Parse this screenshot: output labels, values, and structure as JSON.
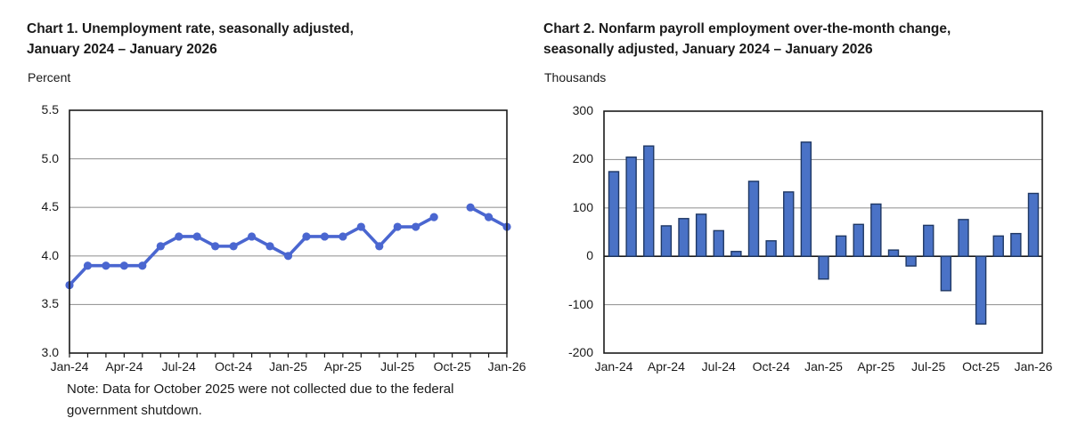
{
  "chart1": {
    "title_line1": "Chart 1. Unemployment rate, seasonally adjusted,",
    "title_line2": "January 2024 – January 2026",
    "unit_label": "Percent",
    "note_line1": "Note: Data for October 2025 were not collected due to the federal",
    "note_line2": "government shutdown."
  },
  "chart2": {
    "title_line1": "Chart 2. Nonfarm payroll employment over-the-month change,",
    "title_line2": "seasonally adjusted, January 2024 – January 2026",
    "unit_label": "Thousands"
  },
  "chart_data": [
    {
      "id": "chart1",
      "type": "line",
      "title": "Chart 1. Unemployment rate, seasonally adjusted, January 2024 – January 2026",
      "ylabel": "Percent",
      "x": [
        "Jan-24",
        "Feb-24",
        "Mar-24",
        "Apr-24",
        "May-24",
        "Jun-24",
        "Jul-24",
        "Aug-24",
        "Sep-24",
        "Oct-24",
        "Nov-24",
        "Dec-24",
        "Jan-25",
        "Feb-25",
        "Mar-25",
        "Apr-25",
        "May-25",
        "Jun-25",
        "Jul-25",
        "Aug-25",
        "Sep-25",
        "Oct-25",
        "Nov-25",
        "Dec-25",
        "Jan-26"
      ],
      "values": [
        3.7,
        3.9,
        3.9,
        3.9,
        3.9,
        4.1,
        4.2,
        4.2,
        4.1,
        4.1,
        4.2,
        4.1,
        4.0,
        4.2,
        4.2,
        4.2,
        4.3,
        4.1,
        4.3,
        4.3,
        4.4,
        null,
        4.5,
        4.4,
        4.3
      ],
      "missing_note": "October 2025 not collected (federal government shutdown)",
      "ylim": [
        3.0,
        5.5
      ],
      "ytick_values": [
        5.5,
        5.0,
        4.5,
        4.0,
        3.5,
        3.0
      ],
      "ytick_labels": [
        "5.5",
        "5.0",
        "4.5",
        "4.0",
        "3.5",
        "3.0"
      ],
      "xtick_indices": [
        0,
        3,
        6,
        9,
        12,
        15,
        18,
        21,
        24
      ],
      "xtick_labels": [
        "Jan-24",
        "Apr-24",
        "Jul-24",
        "Oct-24",
        "Jan-25",
        "Apr-25",
        "Jul-25",
        "Oct-25",
        "Jan-26"
      ],
      "grid": true,
      "legend": "none",
      "line_color": "#4a66d0",
      "grid_color": "#9a9a9a",
      "frame_color": "#1a1a1a"
    },
    {
      "id": "chart2",
      "type": "bar",
      "title": "Chart 2. Nonfarm payroll employment over-the-month change, seasonally adjusted, January 2024 – January 2026",
      "ylabel": "Thousands",
      "categories": [
        "Jan-24",
        "Feb-24",
        "Mar-24",
        "Apr-24",
        "May-24",
        "Jun-24",
        "Jul-24",
        "Aug-24",
        "Sep-24",
        "Oct-24",
        "Nov-24",
        "Dec-24",
        "Jan-25",
        "Feb-25",
        "Mar-25",
        "Apr-25",
        "May-25",
        "Jun-25",
        "Jul-25",
        "Aug-25",
        "Sep-25",
        "Oct-25",
        "Nov-25",
        "Dec-25",
        "Jan-26"
      ],
      "values": [
        175,
        205,
        228,
        63,
        78,
        87,
        53,
        10,
        155,
        32,
        133,
        236,
        -47,
        42,
        66,
        108,
        13,
        -20,
        64,
        -71,
        76,
        -140,
        42,
        47,
        130
      ],
      "ylim": [
        -200,
        300
      ],
      "ytick_values": [
        300,
        200,
        100,
        0,
        -100,
        -200
      ],
      "ytick_labels": [
        "300",
        "200",
        "100",
        "0",
        "-100",
        "-200"
      ],
      "xtick_indices": [
        0,
        3,
        6,
        9,
        12,
        15,
        18,
        21,
        24
      ],
      "xtick_labels": [
        "Jan-24",
        "Apr-24",
        "Jul-24",
        "Oct-24",
        "Jan-25",
        "Apr-25",
        "Jul-25",
        "Oct-25",
        "Jan-26"
      ],
      "grid": true,
      "legend": "none",
      "bar_fill": "#4a72c6",
      "bar_border": "#1f3864",
      "grid_color": "#9a9a9a",
      "frame_color": "#1a1a1a"
    }
  ]
}
